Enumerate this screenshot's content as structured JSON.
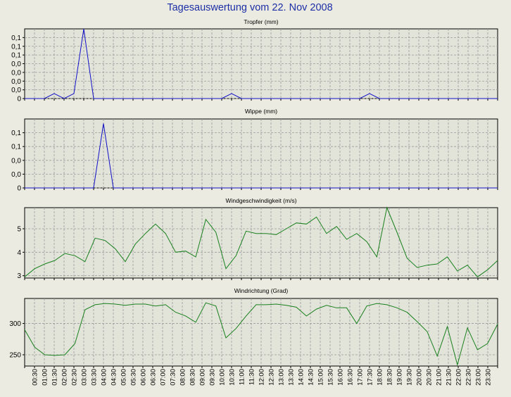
{
  "page_title": "Tagesauswertung vom 22. Nov 2008",
  "colors": {
    "background": "#ecebe1",
    "plot_background": "#e3e4d9",
    "grid": "#9a9a9a",
    "title": "#1c2fa6",
    "blue_series": "#1010c8",
    "green_series": "#18801e"
  },
  "time_labels": [
    "00:30",
    "01:00",
    "01:30",
    "02:00",
    "02:30",
    "03:00",
    "03:30",
    "04:00",
    "04:30",
    "05:00",
    "05:30",
    "06:00",
    "06:30",
    "07:00",
    "07:30",
    "08:00",
    "08:30",
    "09:00",
    "09:30",
    "10:00",
    "10:30",
    "11:00",
    "11:30",
    "12:00",
    "12:30",
    "13:00",
    "13:30",
    "14:00",
    "14:30",
    "15:00",
    "15:30",
    "16:00",
    "16:30",
    "17:00",
    "17:30",
    "18:00",
    "18:30",
    "19:00",
    "19:30",
    "20:00",
    "20:30",
    "21:00",
    "21:30",
    "22:00",
    "22:30",
    "23:00",
    "23:30"
  ],
  "chart_data": [
    {
      "type": "line",
      "title": "Tropfer (mm)",
      "y_tick_labels": [
        "0,1",
        "0,1",
        "0,1",
        "0,0",
        "0,0",
        "0,0",
        "0,0",
        "0"
      ],
      "ylim": [
        0,
        0.14
      ],
      "grid": true,
      "series": [
        {
          "color": "blue",
          "x": [
            "00:00",
            "00:30",
            "01:00",
            "01:30",
            "02:00",
            "02:30",
            "03:00",
            "03:30",
            "04:00",
            "10:00",
            "10:30",
            "11:00",
            "17:00",
            "17:30",
            "18:00"
          ],
          "values": [
            0,
            0,
            0,
            0.01,
            0,
            0.01,
            0.14,
            0,
            0,
            0,
            0.01,
            0,
            0,
            0.01,
            0
          ]
        }
      ]
    },
    {
      "type": "line",
      "title": "Wippe (mm)",
      "y_tick_labels": [
        "0,1",
        "0,1",
        "0,0",
        "0,0",
        "0"
      ],
      "ylim": [
        0,
        0.15
      ],
      "grid": true,
      "series": [
        {
          "color": "blue",
          "x": [
            "00:00",
            "03:30",
            "04:00",
            "04:30",
            "05:00"
          ],
          "values": [
            0,
            0,
            0.14,
            0,
            0
          ]
        }
      ]
    },
    {
      "type": "line",
      "title": "Windgeschwindigkeit (m/s)",
      "y_ticks": [
        3,
        4,
        5
      ],
      "ylim": [
        2.9,
        5.9
      ],
      "grid": true,
      "series": [
        {
          "color": "green",
          "values": [
            2.95,
            3.3,
            3.5,
            3.65,
            3.95,
            3.85,
            3.6,
            4.6,
            4.5,
            4.15,
            3.6,
            4.35,
            4.8,
            5.2,
            4.8,
            4.0,
            4.05,
            3.8,
            5.4,
            4.85,
            3.3,
            3.85,
            4.9,
            4.8,
            4.8,
            4.75,
            5.0,
            5.25,
            5.2,
            5.5,
            4.8,
            5.1,
            4.55,
            4.8,
            4.45,
            3.8,
            5.9,
            4.85,
            3.75,
            3.35,
            3.45,
            3.5,
            3.8,
            3.2,
            3.45,
            2.95,
            3.25,
            3.65
          ]
        }
      ]
    },
    {
      "type": "line",
      "title": "Windrichtung (Grad)",
      "y_ticks": [
        250,
        300
      ],
      "ylim": [
        232,
        340
      ],
      "grid": true,
      "series": [
        {
          "color": "green",
          "values": [
            290,
            262,
            250,
            249,
            250,
            268,
            322,
            330,
            332,
            331,
            329,
            331,
            331,
            328,
            330,
            318,
            312,
            302,
            333,
            328,
            277,
            292,
            312,
            330,
            330,
            331,
            329,
            326,
            312,
            323,
            329,
            325,
            325,
            300,
            328,
            332,
            330,
            325,
            318,
            303,
            287,
            248,
            295,
            234,
            293,
            258,
            268,
            299
          ]
        }
      ]
    }
  ]
}
